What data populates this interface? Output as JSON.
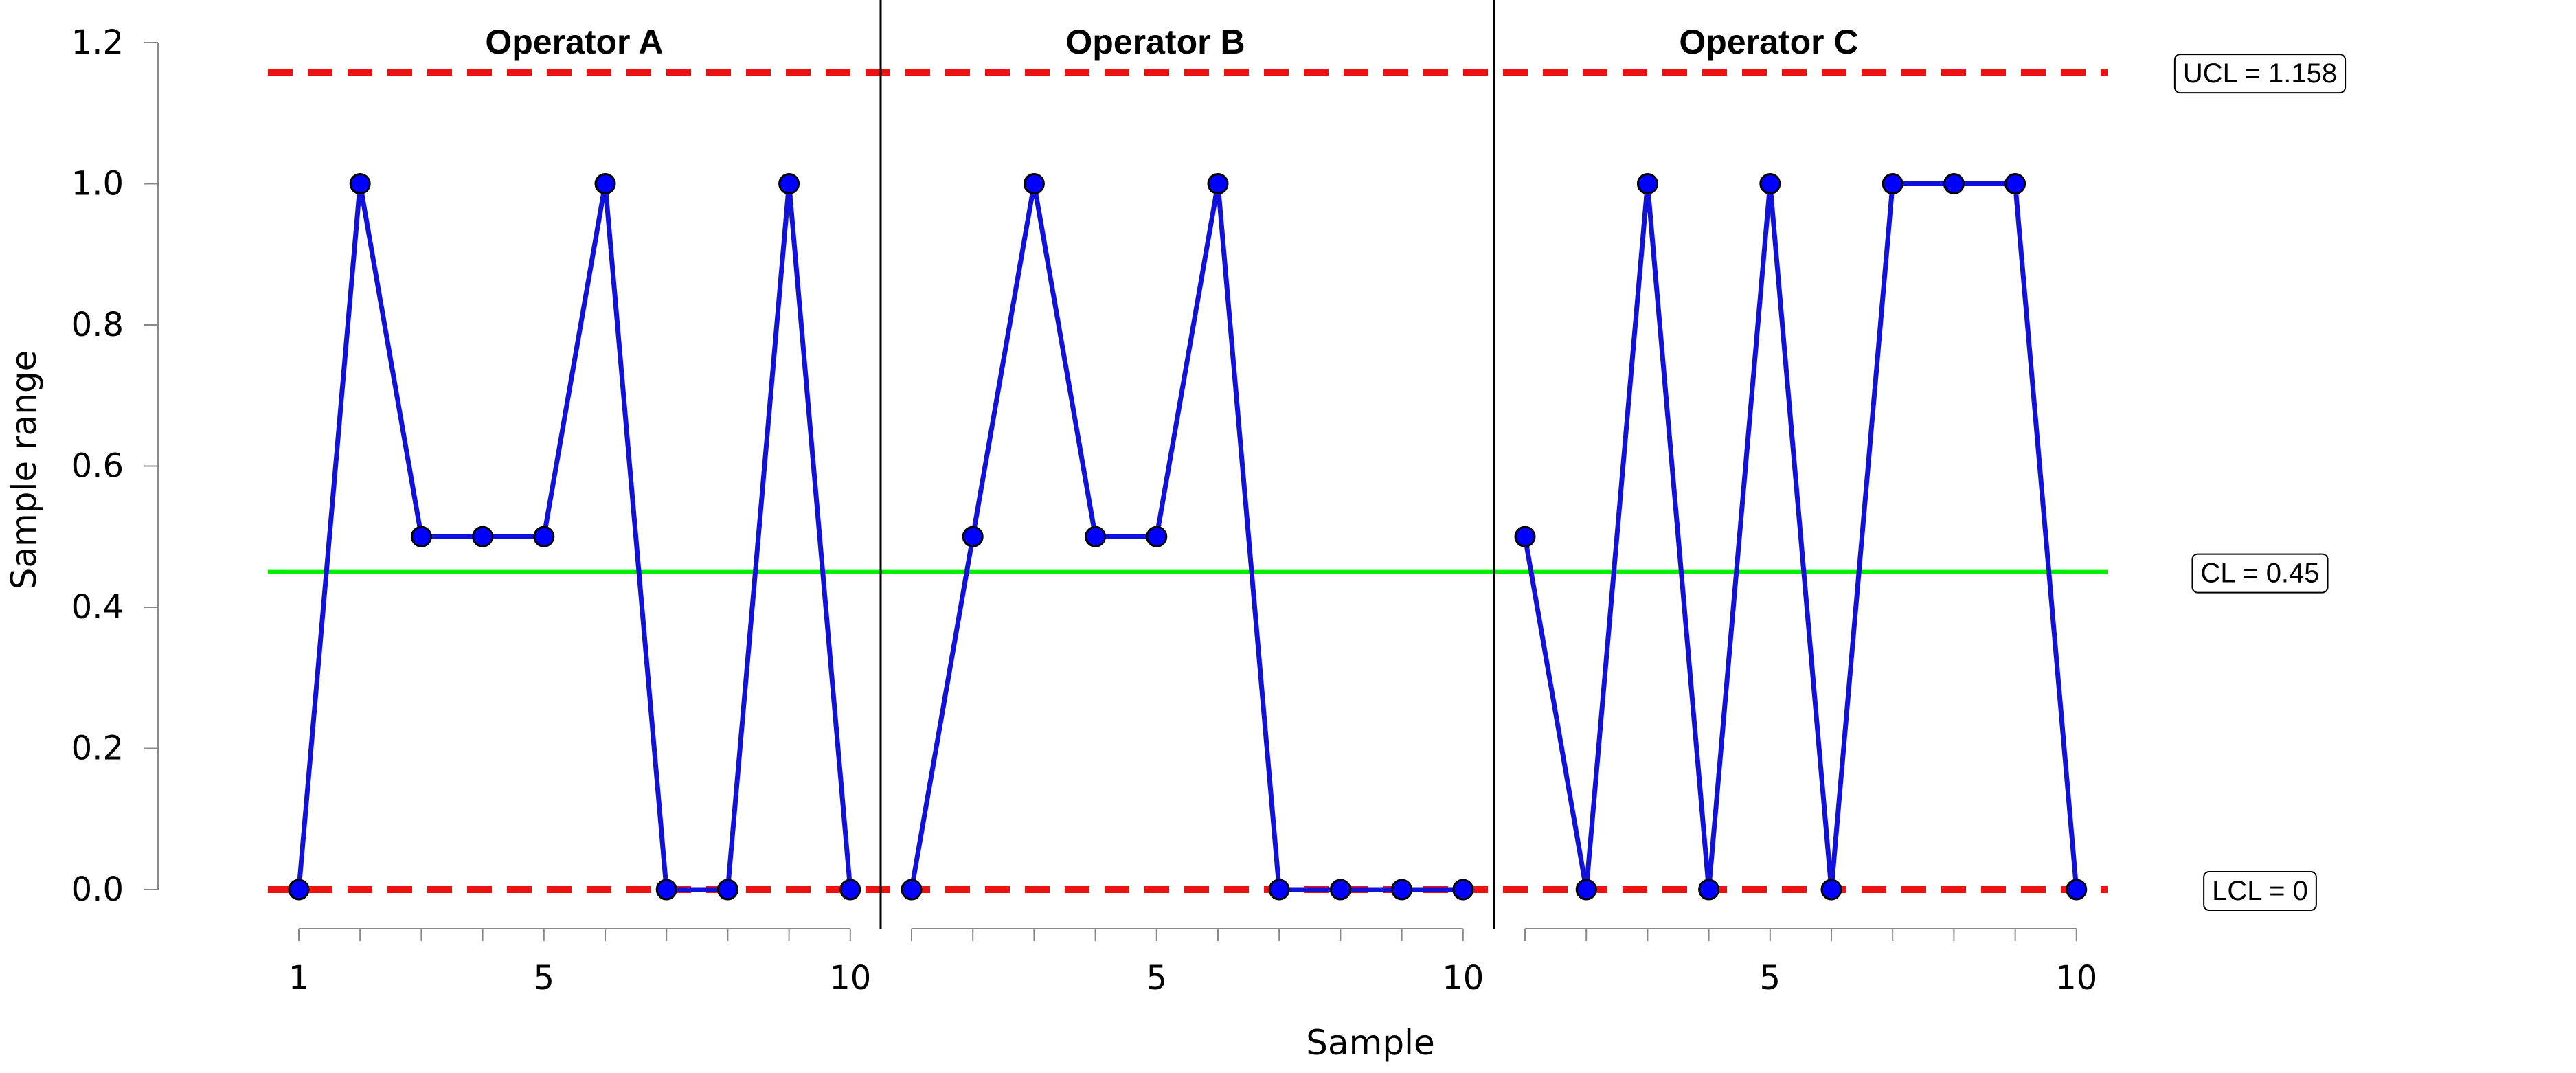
{
  "chart_data": {
    "type": "line",
    "xlabel": "Sample",
    "ylabel": "Sample range",
    "ylim": [
      -0.06,
      1.2
    ],
    "yticks": [
      0.0,
      0.2,
      0.4,
      0.6,
      0.8,
      1.0,
      1.2
    ],
    "ytick_labels": [
      "0.0",
      "0.2",
      "0.4",
      "0.6",
      "0.8",
      "1.0",
      "1.2"
    ],
    "xtick_labels": [
      "1",
      "5",
      "10"
    ],
    "groups": [
      {
        "name": "Operator A",
        "x": [
          1,
          2,
          3,
          4,
          5,
          6,
          7,
          8,
          9,
          10
        ],
        "values": [
          0.0,
          1.0,
          0.5,
          0.5,
          0.5,
          1.0,
          0.0,
          0.0,
          1.0,
          0.0
        ]
      },
      {
        "name": "Operator B",
        "x": [
          1,
          2,
          3,
          4,
          5,
          6,
          7,
          8,
          9,
          10
        ],
        "values": [
          0.0,
          0.5,
          1.0,
          0.5,
          0.5,
          1.0,
          0.0,
          0.0,
          0.0,
          0.0
        ]
      },
      {
        "name": "Operator C",
        "x": [
          1,
          2,
          3,
          4,
          5,
          6,
          7,
          8,
          9,
          10
        ],
        "values": [
          0.5,
          0.0,
          1.0,
          0.0,
          1.0,
          0.0,
          1.0,
          1.0,
          1.0,
          0.0
        ]
      }
    ],
    "center_line": {
      "value": 0.45,
      "label": "CL = 0.45",
      "color": "#00ee00"
    },
    "ucl": {
      "value": 1.158,
      "label": "UCL = 1.158",
      "color": "#ee1111"
    },
    "lcl": {
      "value": 0,
      "label": "LCL = 0",
      "color": "#ee1111"
    },
    "series_color": "#1111dd",
    "point_color": "#0000ff",
    "grid": false
  }
}
